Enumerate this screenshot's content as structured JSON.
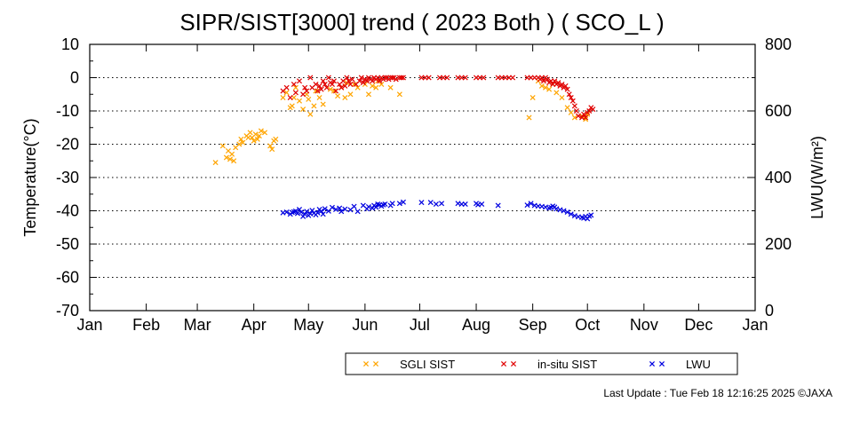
{
  "chart_data": {
    "type": "scatter",
    "title": "SIPR/SIST[3000] trend ( 2023 Both ) ( SCO_L )",
    "ylabel": "Temperature(°C)",
    "y2label": "LWU(W/m²)",
    "ylim": [
      -70,
      10
    ],
    "y2lim": [
      0,
      800
    ],
    "xlim": [
      0,
      365
    ],
    "yticks": [
      "10",
      "0",
      "-10",
      "-20",
      "-30",
      "-40",
      "-50",
      "-60",
      "-70"
    ],
    "y2ticks": [
      "800",
      "600",
      "400",
      "200",
      "0"
    ],
    "months": [
      "Jan",
      "Feb",
      "Mar",
      "Apr",
      "May",
      "Jun",
      "Jul",
      "Aug",
      "Sep",
      "Oct",
      "Nov",
      "Dec",
      "Jan"
    ],
    "grid": "dotted horizontal",
    "legend_position": "bottom-right",
    "series": [
      {
        "name": "SGLI SIST",
        "color": "#ffa500",
        "axis": "left",
        "x": [
          69,
          73,
          75,
          76,
          77,
          78,
          79,
          80,
          82,
          83,
          84,
          86,
          87,
          88,
          89,
          90,
          91,
          92,
          93,
          94,
          96,
          99,
          100,
          101,
          102,
          106,
          108,
          110,
          111,
          112,
          113,
          115,
          117,
          119,
          120,
          121,
          123,
          124,
          126,
          128,
          132,
          134,
          136,
          138,
          140,
          141,
          143,
          145,
          147,
          151,
          153,
          155,
          157,
          158,
          160,
          165,
          170,
          241,
          243,
          246,
          248,
          250,
          252,
          254,
          256,
          259,
          262,
          264,
          266,
          270,
          272,
          273
        ],
        "y": [
          -25.5,
          -20.5,
          -24,
          -22,
          -24.5,
          -23,
          -25,
          -21,
          -20,
          -18.5,
          -19.5,
          -17.5,
          -18,
          -16.5,
          -18,
          -19,
          -17,
          -18.5,
          -17.5,
          -16,
          -16.5,
          -20.5,
          -21.5,
          -19,
          -18.5,
          -6,
          -4.5,
          -9,
          -8.5,
          -6,
          -3,
          -7,
          -9.5,
          -5,
          -6.5,
          -11,
          -8.5,
          -4,
          -6,
          -8,
          -3.5,
          -4,
          -5.5,
          -3,
          -6,
          -1.5,
          -5,
          -2,
          -3,
          -2,
          -5,
          -2.5,
          -3,
          -1,
          -2,
          -3,
          -5,
          -12,
          -6,
          -1,
          -2.5,
          -3,
          -3.5,
          -2,
          -4.5,
          -6,
          -9,
          -10.5,
          -12,
          -11.5,
          -12.5,
          -11
        ]
      },
      {
        "name": "in-situ SIST",
        "color": "#e00000",
        "axis": "left",
        "x": [
          106,
          108,
          110,
          112,
          113,
          115,
          117,
          118,
          119,
          121,
          122,
          124,
          125,
          126,
          127,
          128,
          129,
          130,
          131,
          132,
          133,
          134,
          135,
          137,
          138,
          139,
          140,
          141,
          142,
          143,
          144,
          146,
          148,
          149,
          150,
          151,
          152,
          153,
          154,
          155,
          156,
          157,
          158,
          159,
          160,
          161,
          162,
          163,
          164,
          165,
          166,
          167,
          168,
          170,
          171,
          172,
          182,
          184,
          186,
          192,
          194,
          196,
          202,
          204,
          206,
          212,
          214,
          216,
          224,
          226,
          228,
          230,
          232,
          240,
          242,
          244,
          246,
          247,
          248,
          249,
          250,
          251,
          252,
          253,
          254,
          255,
          256,
          257,
          258,
          259,
          260,
          261,
          262,
          263,
          264,
          265,
          266,
          267,
          268,
          270,
          271,
          272,
          273,
          274,
          275,
          276
        ],
        "y": [
          -4,
          -3,
          -6,
          -2,
          -4.5,
          -1,
          -5,
          -3,
          -4,
          0,
          -3,
          -2,
          -4,
          -2.5,
          -3.5,
          -1,
          -2,
          -3,
          0,
          -1.5,
          -2,
          -1,
          -4,
          -2,
          -3,
          -1,
          -2.5,
          0,
          -1,
          -2,
          -0.5,
          -2,
          -1,
          0,
          -1.5,
          -0.5,
          -1,
          0,
          -0.5,
          -1,
          0,
          -0.5,
          0,
          -1,
          0,
          -0.5,
          0,
          0,
          -0.5,
          0,
          0,
          0,
          -0.5,
          0,
          0,
          0,
          0,
          0,
          0,
          0,
          0,
          0,
          0,
          0,
          0,
          0,
          0,
          0,
          0,
          0,
          0,
          0,
          0,
          0,
          0,
          0,
          0,
          -0.5,
          0,
          -1,
          0,
          -0.5,
          -1.5,
          -1,
          -2,
          -1,
          -2,
          -1.5,
          -2.5,
          -2,
          -3,
          -2.5,
          -3.5,
          -5,
          -6,
          -7,
          -8.5,
          -10,
          -11.5,
          -12,
          -11,
          -12,
          -10.5,
          -10,
          -9,
          -9.5
        ]
      },
      {
        "name": "LWU",
        "color": "#0000e0",
        "axis": "right",
        "x": [
          106,
          108,
          110,
          111,
          112,
          113,
          114,
          115,
          116,
          117,
          118,
          119,
          120,
          121,
          122,
          123,
          124,
          125,
          126,
          127,
          128,
          129,
          131,
          133,
          135,
          137,
          138,
          140,
          143,
          145,
          147,
          150,
          152,
          153,
          155,
          156,
          157,
          158,
          159,
          160,
          161,
          162,
          165,
          166,
          170,
          172,
          182,
          187,
          190,
          193,
          202,
          204,
          206,
          212,
          213,
          215,
          224,
          240,
          242,
          244,
          246,
          248,
          250,
          252,
          253,
          254,
          255,
          256,
          258,
          260,
          262,
          264,
          266,
          268,
          270,
          271,
          272,
          273,
          274,
          275
        ],
        "y": [
          294,
          296,
          290,
          295,
          297,
          299,
          292,
          304,
          296,
          283,
          290,
          298,
          286,
          291,
          301,
          293,
          288,
          294,
          304,
          299,
          290,
          306,
          299,
          310,
          304,
          308,
          298,
          305,
          303,
          313,
          298,
          316,
          306,
          312,
          308,
          316,
          311,
          320,
          318,
          314,
          318,
          320,
          316,
          322,
          322,
          326,
          325,
          325,
          320,
          322,
          322,
          320,
          320,
          322,
          318,
          320,
          316,
          317,
          322,
          316,
          314,
          313,
          311,
          308,
          310,
          314,
          311,
          306,
          303,
          300,
          296,
          290,
          285,
          282,
          280,
          278,
          283,
          276,
          284,
          287
        ]
      }
    ]
  },
  "footer": {
    "last_update": "Last Update : Tue Feb 18 12:16:25 2025 ©JAXA"
  }
}
